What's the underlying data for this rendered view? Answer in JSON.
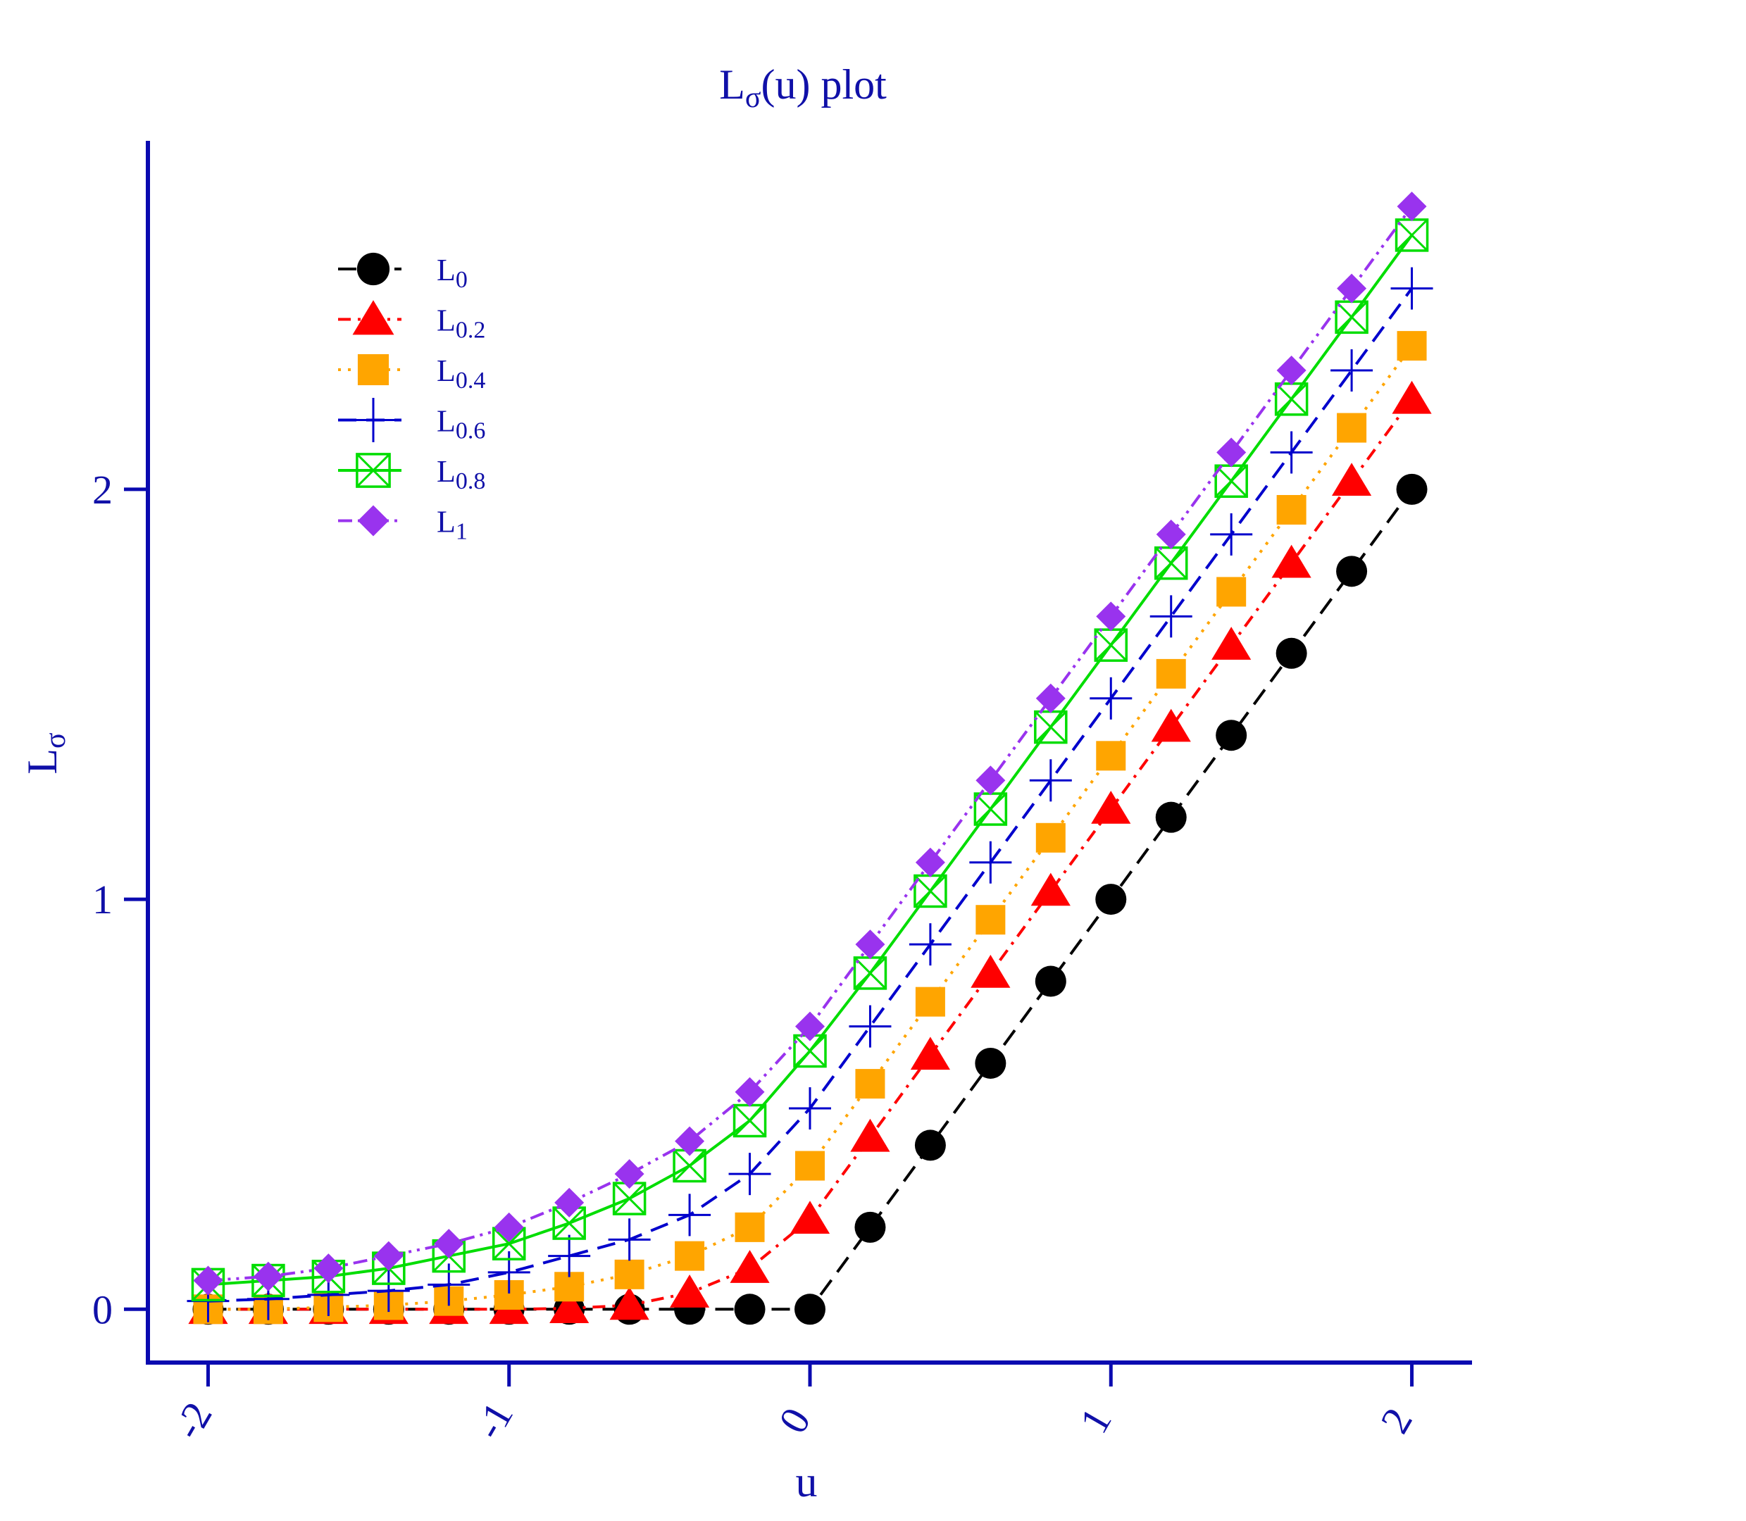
{
  "chart_data": {
    "type": "line",
    "title": {
      "main": "L",
      "sub": "σ",
      "rest": "(u)  plot"
    },
    "xlabel": "u",
    "ylabel": {
      "main": "L",
      "sub": "σ"
    },
    "xlim": [
      -2.2,
      2.2
    ],
    "ylim": [
      -0.13,
      2.85
    ],
    "xticks": [
      -2,
      -1,
      0,
      1,
      2
    ],
    "xtick_labels": [
      "-2",
      "-1",
      "0",
      "1",
      "2"
    ],
    "yticks": [
      0,
      1,
      2
    ],
    "ytick_labels": [
      "0",
      "1",
      "2"
    ],
    "grid": false,
    "legend_position": "top-left",
    "axis_color": "#0a0ab0",
    "x": [
      -2,
      -1.8,
      -1.6,
      -1.4,
      -1.2,
      -1,
      -0.8,
      -0.6,
      -0.4,
      -0.2,
      0,
      0.2,
      0.4,
      0.6,
      0.8,
      1,
      1.2,
      1.4,
      1.6,
      1.8,
      2
    ],
    "series": [
      {
        "name": "L",
        "sub": "0",
        "color": "#000000",
        "marker": "circle",
        "dash": "dashed",
        "values": [
          0,
          0,
          0,
          0,
          0,
          0,
          0,
          0,
          0,
          0,
          0,
          0.2,
          0.4,
          0.6,
          0.8,
          1.0,
          1.2,
          1.4,
          1.6,
          1.8,
          2.0
        ]
      },
      {
        "name": "L",
        "sub": "0.2",
        "color": "#ff0000",
        "marker": "triangle",
        "dash": "dashdot",
        "values": [
          0,
          0,
          0,
          0,
          0,
          0,
          0.002,
          0.01,
          0.04,
          0.1,
          0.22,
          0.42,
          0.62,
          0.82,
          1.02,
          1.22,
          1.42,
          1.62,
          1.82,
          2.02,
          2.22
        ]
      },
      {
        "name": "L",
        "sub": "0.4",
        "color": "#ffa500",
        "marker": "square",
        "dash": "dotted",
        "values": [
          0,
          0,
          0.005,
          0.01,
          0.02,
          0.035,
          0.055,
          0.085,
          0.13,
          0.2,
          0.35,
          0.55,
          0.75,
          0.95,
          1.15,
          1.35,
          1.55,
          1.75,
          1.95,
          2.15,
          2.35
        ]
      },
      {
        "name": "L",
        "sub": "0.6",
        "color": "#0000cc",
        "marker": "plus",
        "dash": "dashed",
        "values": [
          0.02,
          0.025,
          0.035,
          0.045,
          0.06,
          0.09,
          0.13,
          0.17,
          0.23,
          0.33,
          0.49,
          0.69,
          0.89,
          1.09,
          1.29,
          1.49,
          1.69,
          1.89,
          2.09,
          2.29,
          2.49
        ]
      },
      {
        "name": "L",
        "sub": "0.8",
        "color": "#00dd00",
        "marker": "boxx",
        "dash": "solid",
        "values": [
          0.06,
          0.07,
          0.08,
          0.1,
          0.13,
          0.16,
          0.21,
          0.27,
          0.35,
          0.46,
          0.63,
          0.82,
          1.02,
          1.22,
          1.42,
          1.62,
          1.82,
          2.02,
          2.22,
          2.42,
          2.62
        ]
      },
      {
        "name": "L",
        "sub": "1",
        "color": "#9933ee",
        "marker": "diamond",
        "dash": "dashdotdot",
        "values": [
          0.07,
          0.08,
          0.1,
          0.13,
          0.16,
          0.2,
          0.26,
          0.33,
          0.41,
          0.53,
          0.69,
          0.89,
          1.09,
          1.29,
          1.49,
          1.69,
          1.89,
          2.09,
          2.29,
          2.49,
          2.69
        ]
      }
    ]
  }
}
